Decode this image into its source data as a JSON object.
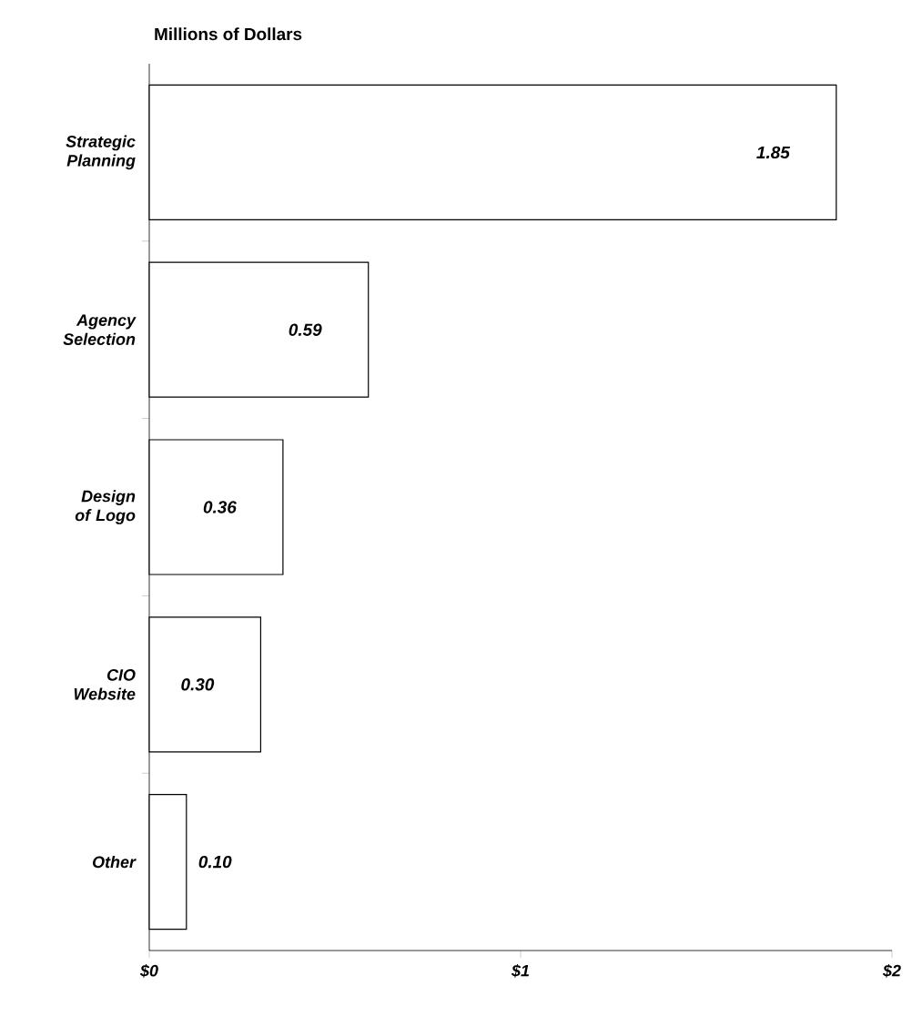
{
  "chart_data": {
    "type": "bar",
    "orientation": "horizontal",
    "title": "Millions of Dollars",
    "categories": [
      "Strategic Planning",
      "Agency Selection",
      "Design of Logo",
      "CIO Website",
      "Other"
    ],
    "values": [
      1.85,
      0.59,
      0.36,
      0.3,
      0.1
    ],
    "value_labels": [
      "1.85",
      "0.59",
      "0.36",
      "0.30",
      "0.10"
    ],
    "color": "#ffffff",
    "xlim": [
      0,
      2
    ],
    "xticks": [
      {
        "value": 0,
        "label": "$0"
      },
      {
        "value": 1,
        "label": "$1"
      },
      {
        "value": 2,
        "label": "$2"
      }
    ],
    "grid": false
  }
}
